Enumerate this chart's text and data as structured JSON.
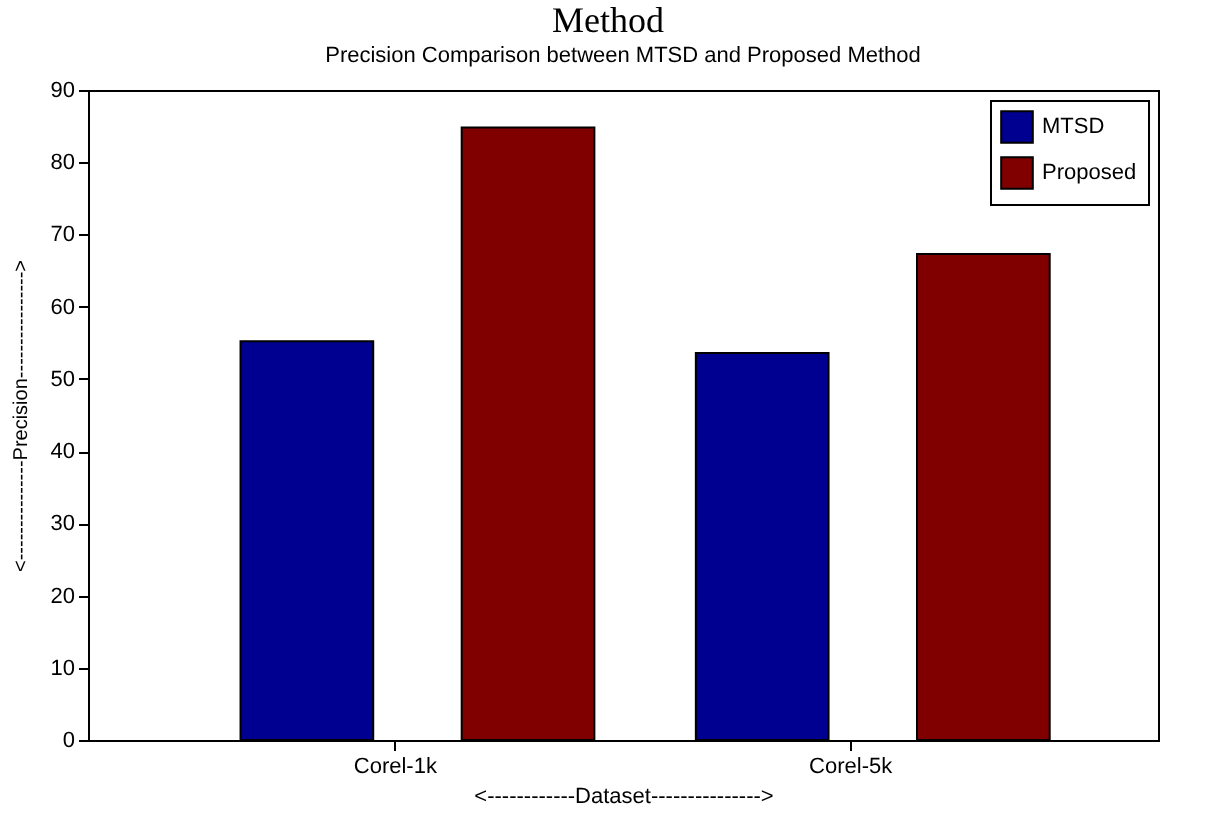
{
  "chart_data": {
    "type": "bar",
    "title": "Precision Comparison between MTSD and Proposed Method",
    "xlabel": "<------------Dataset--------------->",
    "ylabel": "<---------------Precision---------------->",
    "annotations": [
      "Method"
    ],
    "categories": [
      "Corel-1k",
      "Corel-5k"
    ],
    "series": [
      {
        "name": "MTSD",
        "color": "#000090",
        "values": [
          55.2,
          53.6
        ]
      },
      {
        "name": "Proposed",
        "color": "#800000",
        "values": [
          84.8,
          67.3
        ]
      }
    ],
    "ylim": [
      0,
      90
    ],
    "yticks": [
      0,
      10,
      20,
      30,
      40,
      50,
      60,
      70,
      80,
      90
    ],
    "grid": false,
    "legend": "top right"
  }
}
